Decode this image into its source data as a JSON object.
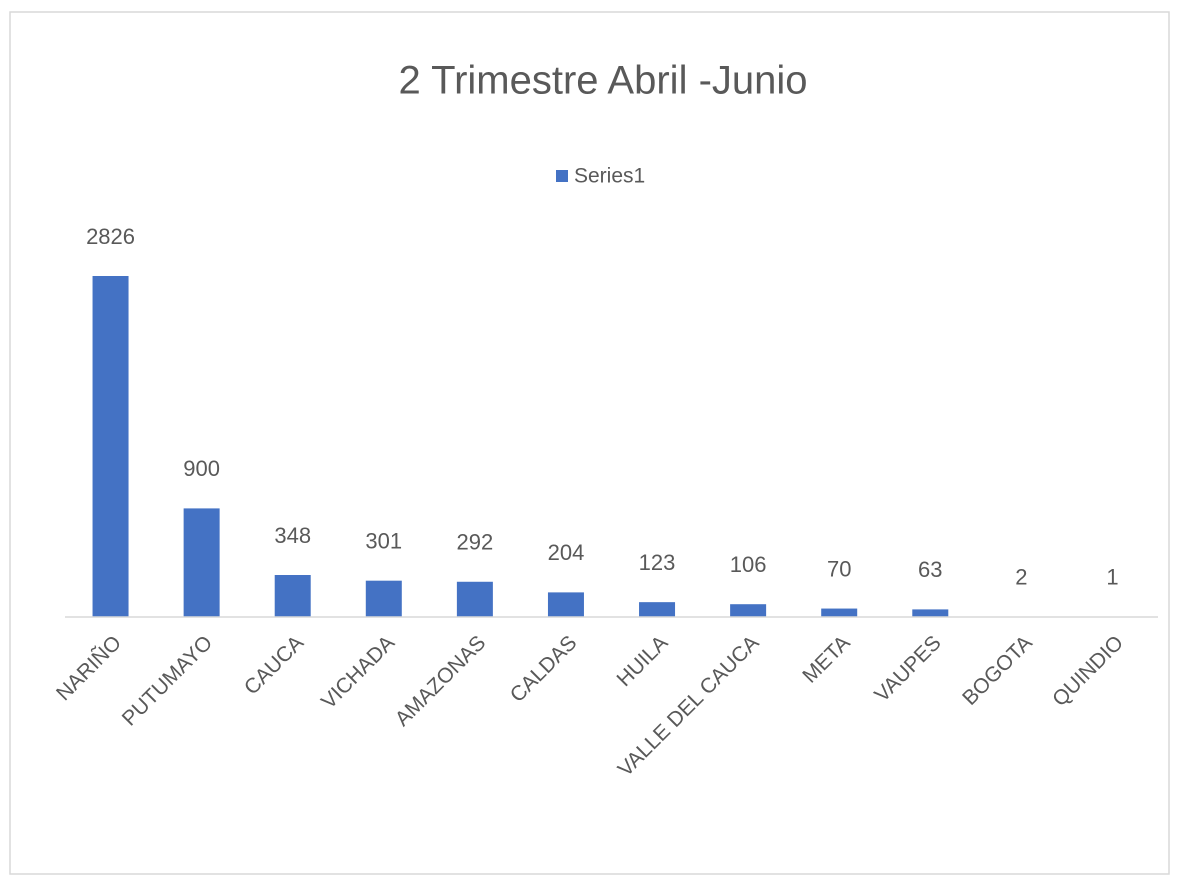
{
  "chart_data": {
    "type": "bar",
    "title": "2 Trimestre Abril -Junio",
    "categories": [
      "NARIÑO",
      "PUTUMAYO",
      "CAUCA",
      "VICHADA",
      "AMAZONAS",
      "CALDAS",
      "HUILA",
      "VALLE DEL CAUCA",
      "META",
      "VAUPES",
      "BOGOTA",
      "QUINDIO"
    ],
    "series": [
      {
        "name": "Series1",
        "color": "#4472c4",
        "values": [
          2826,
          900,
          348,
          301,
          292,
          204,
          123,
          106,
          70,
          63,
          2,
          1
        ]
      }
    ],
    "legend": "top",
    "grid": false
  }
}
